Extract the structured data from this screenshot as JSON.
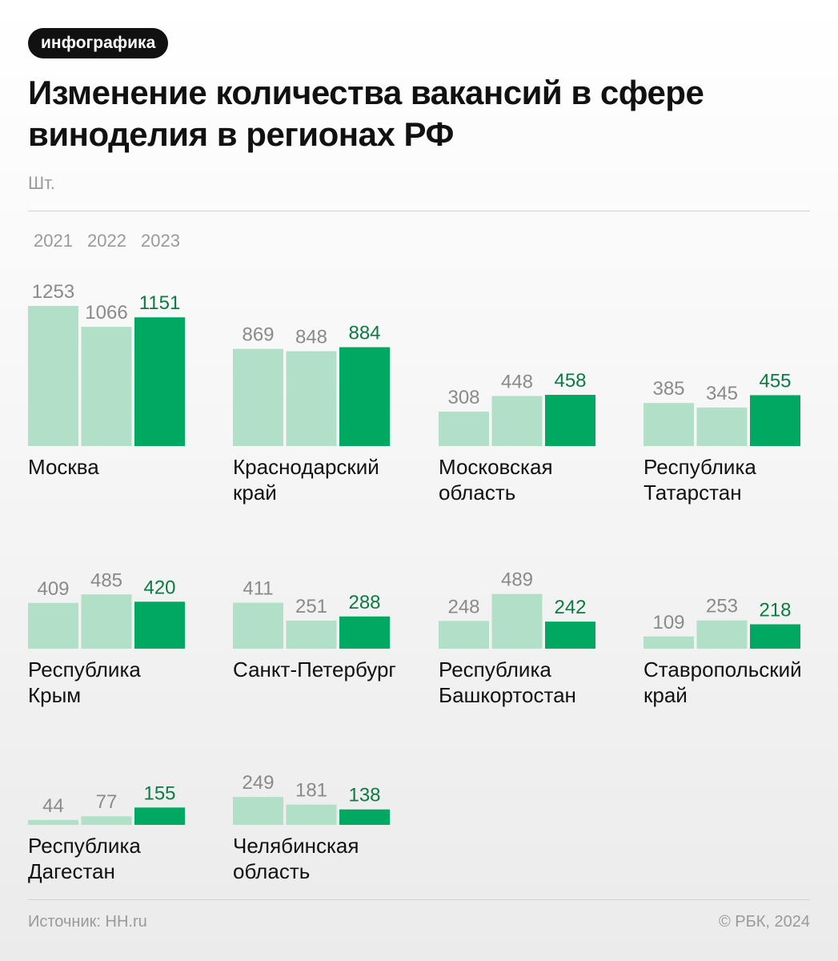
{
  "badge": "инфографика",
  "title": "Изменение количества вакансий в сфере виноделия в регионах РФ",
  "unit": "Шт.",
  "source": "Источник: HH.ru",
  "copyright": "© РБК, 2024",
  "colors": {
    "past_bar": "#b2dfc8",
    "current_bar": "#00a862",
    "past_label": "#8a8a8a",
    "current_label": "#0c7a43"
  },
  "chart_data": {
    "type": "bar",
    "years": [
      "2021",
      "2022",
      "2023"
    ],
    "regions": [
      {
        "name": "Москва",
        "values": [
          1253,
          1066,
          1151
        ]
      },
      {
        "name": "Краснодарский край",
        "values": [
          869,
          848,
          884
        ]
      },
      {
        "name": "Московская область",
        "values": [
          308,
          448,
          458
        ]
      },
      {
        "name": "Республика Татарстан",
        "values": [
          385,
          345,
          455
        ]
      },
      {
        "name": "Республика Крым",
        "values": [
          409,
          485,
          420
        ]
      },
      {
        "name": "Санкт-Петербург",
        "values": [
          411,
          251,
          288
        ]
      },
      {
        "name": "Республика Башкортостан",
        "values": [
          248,
          489,
          242
        ]
      },
      {
        "name": "Ставропольский край",
        "values": [
          109,
          253,
          218
        ]
      },
      {
        "name": "Республика Дагестан",
        "values": [
          44,
          77,
          155
        ]
      },
      {
        "name": "Челябинская область",
        "values": [
          249,
          181,
          138
        ]
      }
    ],
    "region_label_lines": [
      [
        "Москва"
      ],
      [
        "Краснодарский",
        "край"
      ],
      [
        "Московская",
        "область"
      ],
      [
        "Республика",
        "Татарстан"
      ],
      [
        "Республика",
        "Крым"
      ],
      [
        "Санкт-Петербург"
      ],
      [
        "Республика",
        "Башкортостан"
      ],
      [
        "Ставропольский",
        "край"
      ],
      [
        "Республика",
        "Дагестан"
      ],
      [
        "Челябинская",
        "область"
      ]
    ]
  }
}
